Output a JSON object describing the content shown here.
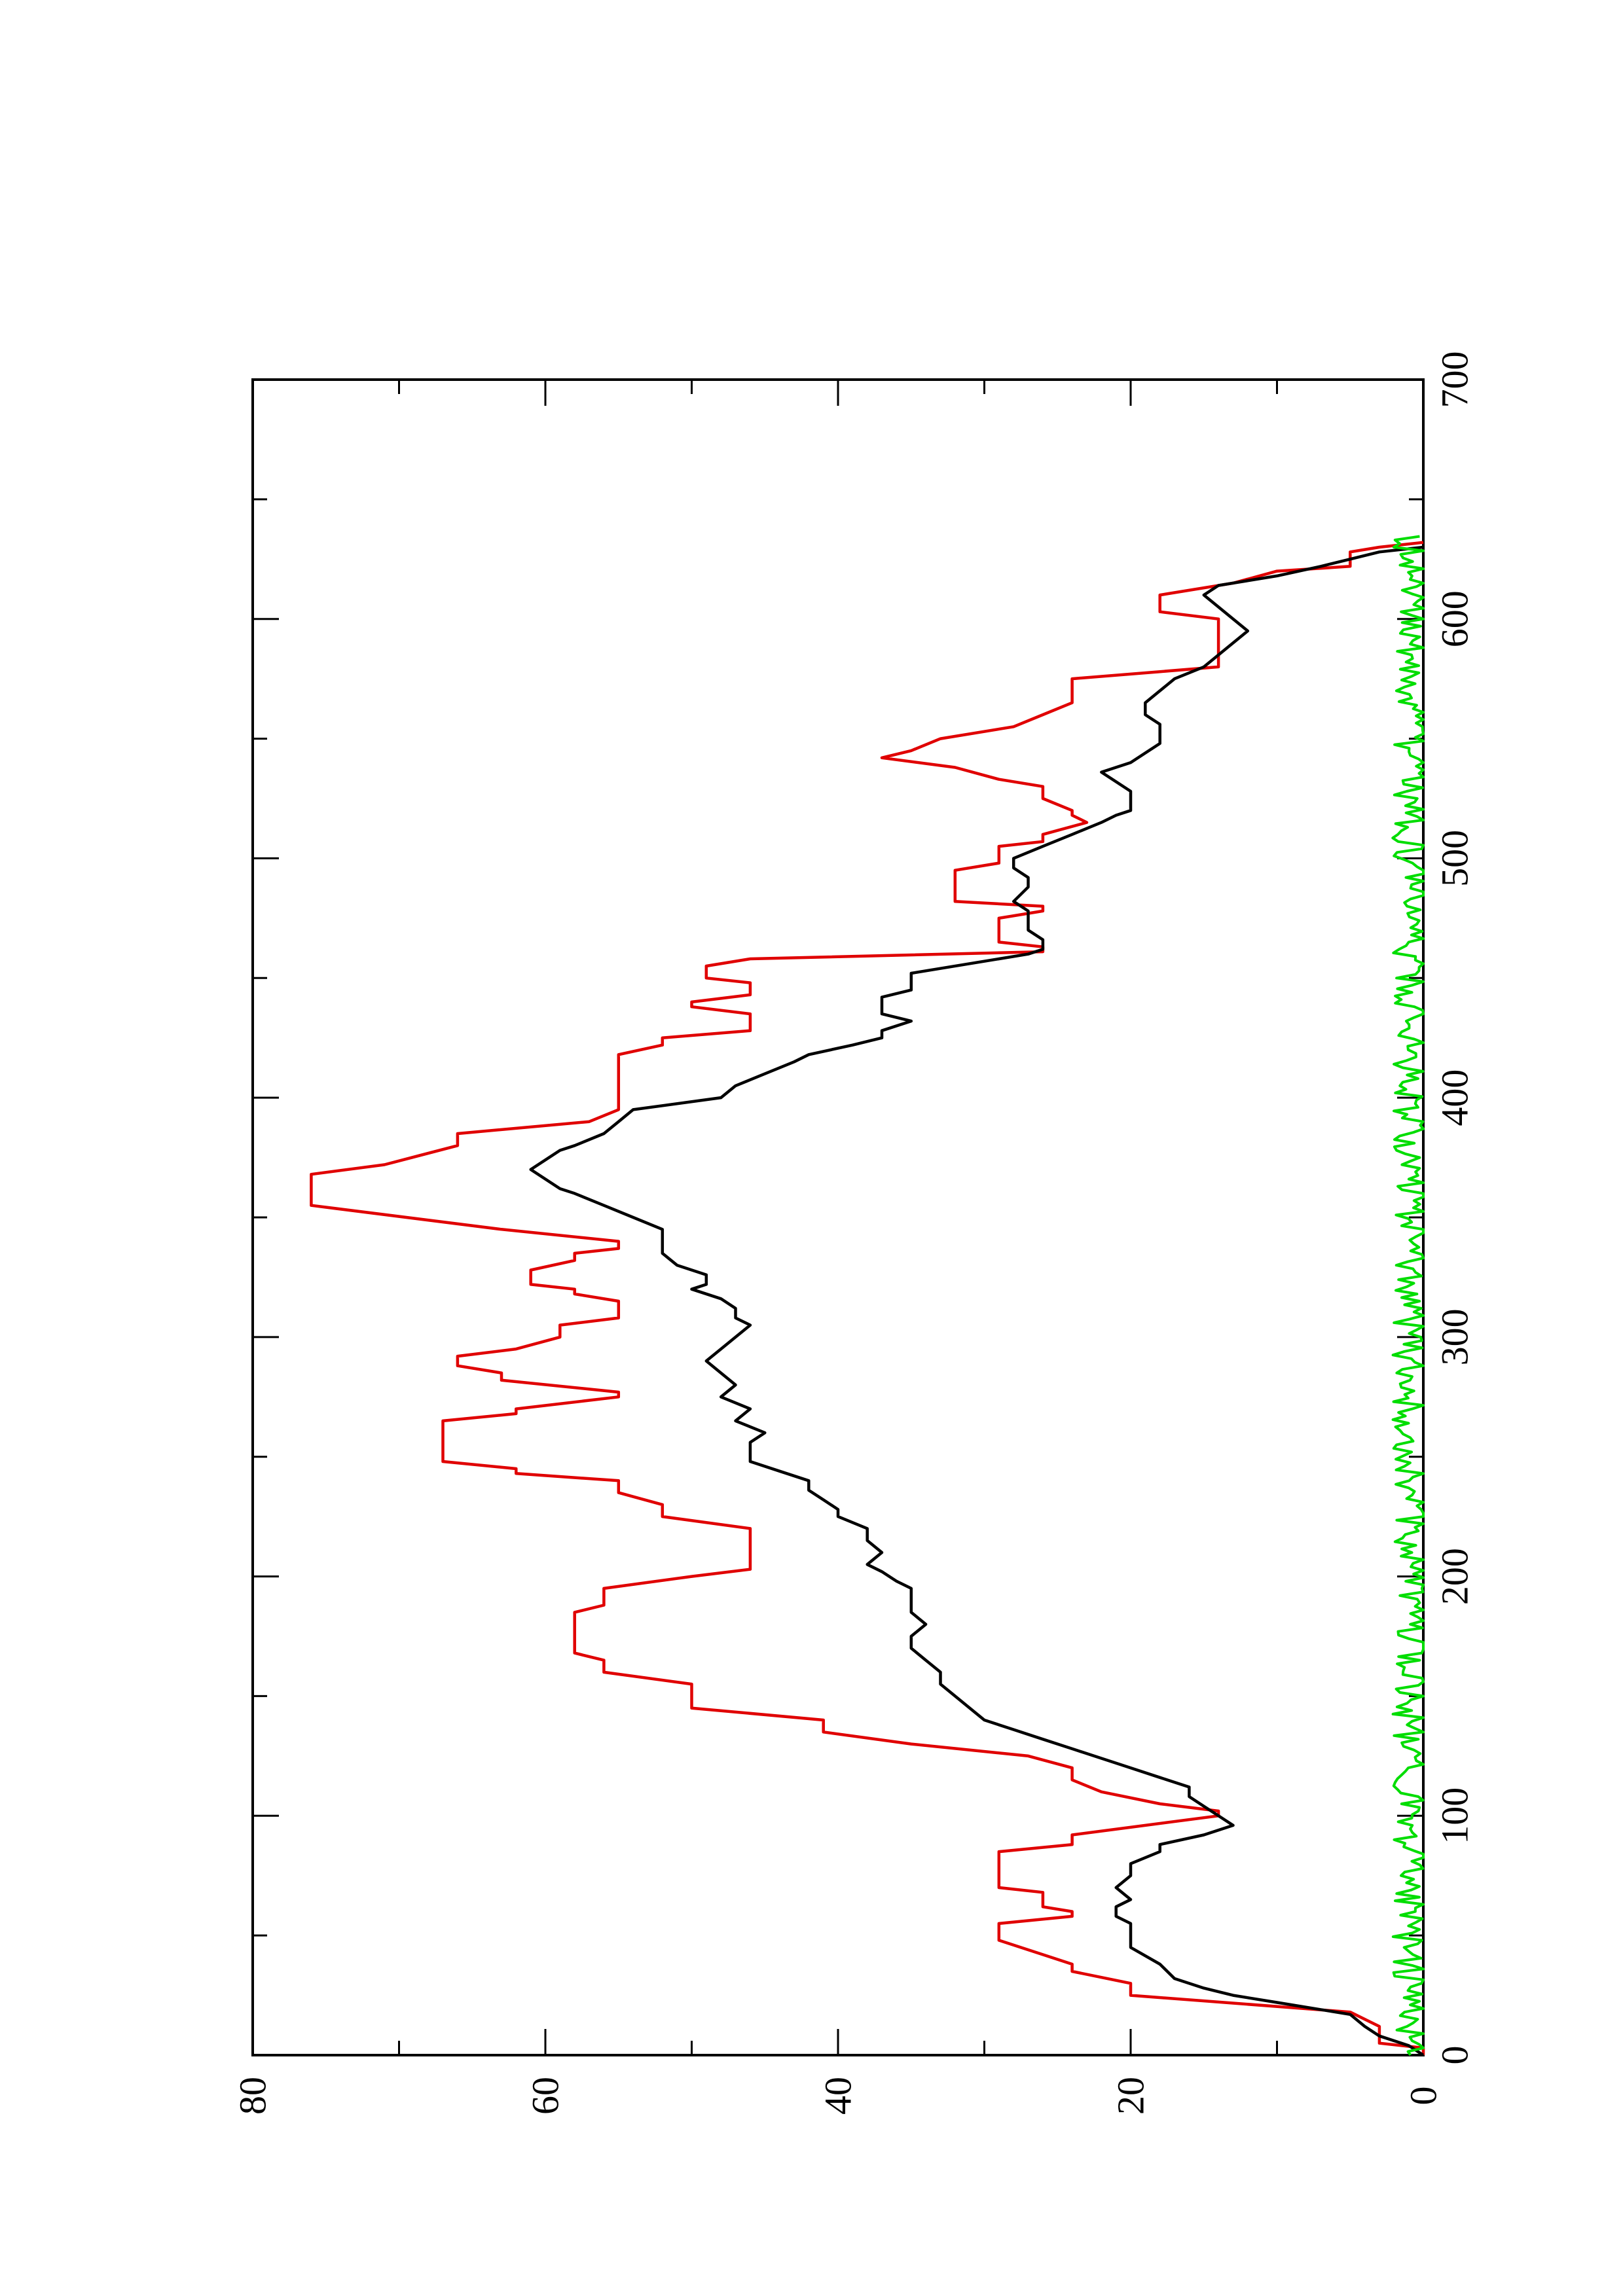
{
  "chart_data": {
    "type": "line",
    "orientation": "rotated 90 degrees counter-clockwise (page in portrait)",
    "title": "",
    "xlabel": "",
    "ylabel": "",
    "xlim": [
      0,
      700
    ],
    "ylim": [
      0,
      80
    ],
    "x_ticks": [
      0,
      100,
      200,
      300,
      400,
      500,
      600,
      700
    ],
    "y_ticks": [
      0,
      20,
      40,
      60,
      80
    ],
    "x_tick_labels": [
      "0",
      "100",
      "200",
      "300",
      "400",
      "500",
      "600",
      "700"
    ],
    "y_tick_labels": [
      "0",
      "20",
      "40",
      "60",
      "80"
    ],
    "grid": false,
    "legend": "none",
    "series": [
      {
        "color": "#e00000",
        "style": "step",
        "points": [
          [
            0,
            0
          ],
          [
            3,
            0
          ],
          [
            5,
            3
          ],
          [
            12,
            3
          ],
          [
            18,
            5
          ],
          [
            25,
            20
          ],
          [
            30,
            20
          ],
          [
            35,
            24
          ],
          [
            38,
            24
          ],
          [
            42,
            26
          ],
          [
            48,
            29
          ],
          [
            55,
            29
          ],
          [
            58,
            24
          ],
          [
            60,
            24
          ],
          [
            62,
            26
          ],
          [
            68,
            26
          ],
          [
            70,
            29
          ],
          [
            85,
            29
          ],
          [
            88,
            24
          ],
          [
            92,
            24
          ],
          [
            100,
            14
          ],
          [
            102,
            14
          ],
          [
            105,
            18
          ],
          [
            110,
            22
          ],
          [
            115,
            24
          ],
          [
            120,
            24
          ],
          [
            125,
            27
          ],
          [
            130,
            35
          ],
          [
            135,
            41
          ],
          [
            140,
            41
          ],
          [
            145,
            50
          ],
          [
            155,
            50
          ],
          [
            160,
            56
          ],
          [
            165,
            56
          ],
          [
            168,
            58
          ],
          [
            185,
            58
          ],
          [
            188,
            56
          ],
          [
            195,
            56
          ],
          [
            200,
            50
          ],
          [
            203,
            46
          ],
          [
            220,
            46
          ],
          [
            225,
            52
          ],
          [
            230,
            52
          ],
          [
            235,
            55
          ],
          [
            240,
            55
          ],
          [
            243,
            62
          ],
          [
            245,
            62
          ],
          [
            248,
            67
          ],
          [
            265,
            67
          ],
          [
            268,
            62
          ],
          [
            270,
            62
          ],
          [
            275,
            55
          ],
          [
            277,
            55
          ],
          [
            282,
            63
          ],
          [
            285,
            63
          ],
          [
            288,
            66
          ],
          [
            292,
            66
          ],
          [
            295,
            62
          ],
          [
            300,
            59
          ],
          [
            305,
            59
          ],
          [
            308,
            55
          ],
          [
            315,
            55
          ],
          [
            318,
            58
          ],
          [
            320,
            58
          ],
          [
            322,
            61
          ],
          [
            328,
            61
          ],
          [
            332,
            58
          ],
          [
            335,
            58
          ],
          [
            337,
            55
          ],
          [
            340,
            55
          ],
          [
            345,
            63
          ],
          [
            355,
            76
          ],
          [
            368,
            76
          ],
          [
            372,
            71
          ],
          [
            380,
            66
          ],
          [
            385,
            66
          ],
          [
            390,
            57
          ],
          [
            395,
            55
          ],
          [
            418,
            55
          ],
          [
            422,
            52
          ],
          [
            425,
            52
          ],
          [
            428,
            46
          ],
          [
            435,
            46
          ],
          [
            438,
            50
          ],
          [
            440,
            50
          ],
          [
            443,
            46
          ],
          [
            448,
            46
          ],
          [
            450,
            49
          ],
          [
            455,
            49
          ],
          [
            458,
            46
          ],
          [
            461,
            26
          ],
          [
            463,
            26
          ],
          [
            465,
            29
          ],
          [
            475,
            29
          ],
          [
            478,
            26
          ],
          [
            480,
            26
          ],
          [
            482,
            32
          ],
          [
            495,
            32
          ],
          [
            498,
            29
          ],
          [
            505,
            29
          ],
          [
            507,
            26
          ],
          [
            510,
            26
          ],
          [
            515,
            23
          ],
          [
            518,
            24
          ],
          [
            520,
            24
          ],
          [
            525,
            26
          ],
          [
            530,
            26
          ],
          [
            533,
            29
          ],
          [
            538,
            32
          ],
          [
            542,
            37
          ],
          [
            545,
            35
          ],
          [
            550,
            33
          ],
          [
            555,
            28
          ],
          [
            560,
            26
          ],
          [
            565,
            24
          ],
          [
            575,
            24
          ],
          [
            578,
            18
          ],
          [
            580,
            14
          ],
          [
            600,
            14
          ],
          [
            603,
            18
          ],
          [
            610,
            18
          ],
          [
            615,
            13
          ],
          [
            620,
            10
          ],
          [
            622,
            5
          ],
          [
            628,
            5
          ],
          [
            630,
            3
          ],
          [
            632,
            0
          ]
        ]
      },
      {
        "color": "#000000",
        "style": "line",
        "points": [
          [
            0,
            0
          ],
          [
            4,
            1
          ],
          [
            8,
            3
          ],
          [
            12,
            4
          ],
          [
            17,
            5
          ],
          [
            22,
            10
          ],
          [
            25,
            13
          ],
          [
            28,
            15
          ],
          [
            32,
            17
          ],
          [
            38,
            18
          ],
          [
            45,
            20
          ],
          [
            50,
            20
          ],
          [
            55,
            20
          ],
          [
            58,
            21
          ],
          [
            62,
            21
          ],
          [
            65,
            20
          ],
          [
            70,
            21
          ],
          [
            75,
            20
          ],
          [
            80,
            20
          ],
          [
            85,
            18
          ],
          [
            88,
            18
          ],
          [
            92,
            15
          ],
          [
            96,
            13
          ],
          [
            100,
            14
          ],
          [
            104,
            15
          ],
          [
            108,
            16
          ],
          [
            112,
            16
          ],
          [
            116,
            18
          ],
          [
            120,
            20
          ],
          [
            124,
            22
          ],
          [
            128,
            24
          ],
          [
            132,
            26
          ],
          [
            136,
            28
          ],
          [
            140,
            30
          ],
          [
            145,
            31
          ],
          [
            150,
            32
          ],
          [
            155,
            33
          ],
          [
            160,
            33
          ],
          [
            165,
            34
          ],
          [
            170,
            35
          ],
          [
            175,
            35
          ],
          [
            180,
            34
          ],
          [
            185,
            35
          ],
          [
            190,
            35
          ],
          [
            195,
            35
          ],
          [
            198,
            36
          ],
          [
            202,
            37
          ],
          [
            205,
            38
          ],
          [
            210,
            37
          ],
          [
            215,
            38
          ],
          [
            220,
            38
          ],
          [
            225,
            40
          ],
          [
            228,
            40
          ],
          [
            232,
            41
          ],
          [
            236,
            42
          ],
          [
            240,
            42
          ],
          [
            244,
            44
          ],
          [
            248,
            46
          ],
          [
            252,
            46
          ],
          [
            256,
            46
          ],
          [
            260,
            45
          ],
          [
            265,
            47
          ],
          [
            270,
            46
          ],
          [
            275,
            48
          ],
          [
            280,
            47
          ],
          [
            285,
            48
          ],
          [
            290,
            49
          ],
          [
            295,
            48
          ],
          [
            300,
            47
          ],
          [
            305,
            46
          ],
          [
            308,
            47
          ],
          [
            312,
            47
          ],
          [
            316,
            48
          ],
          [
            320,
            50
          ],
          [
            322,
            49
          ],
          [
            326,
            49
          ],
          [
            330,
            51
          ],
          [
            335,
            52
          ],
          [
            340,
            52
          ],
          [
            345,
            52
          ],
          [
            350,
            54
          ],
          [
            355,
            56
          ],
          [
            360,
            58
          ],
          [
            362,
            59
          ],
          [
            366,
            60
          ],
          [
            370,
            61
          ],
          [
            374,
            60
          ],
          [
            378,
            59
          ],
          [
            380,
            58
          ],
          [
            385,
            56
          ],
          [
            390,
            55
          ],
          [
            395,
            54
          ],
          [
            400,
            48
          ],
          [
            405,
            47
          ],
          [
            410,
            45
          ],
          [
            415,
            43
          ],
          [
            418,
            42
          ],
          [
            422,
            39
          ],
          [
            425,
            37
          ],
          [
            428,
            37
          ],
          [
            432,
            35
          ],
          [
            435,
            37
          ],
          [
            438,
            37
          ],
          [
            442,
            37
          ],
          [
            445,
            35
          ],
          [
            448,
            35
          ],
          [
            452,
            35
          ],
          [
            456,
            31
          ],
          [
            460,
            27
          ],
          [
            462,
            26
          ],
          [
            466,
            26
          ],
          [
            470,
            27
          ],
          [
            474,
            27
          ],
          [
            478,
            27
          ],
          [
            482,
            28
          ],
          [
            488,
            27
          ],
          [
            492,
            27
          ],
          [
            496,
            28
          ],
          [
            500,
            28
          ],
          [
            505,
            26
          ],
          [
            510,
            24
          ],
          [
            515,
            22
          ],
          [
            518,
            21
          ],
          [
            520,
            20
          ],
          [
            524,
            20
          ],
          [
            528,
            20
          ],
          [
            532,
            21
          ],
          [
            536,
            22
          ],
          [
            540,
            20
          ],
          [
            544,
            19
          ],
          [
            548,
            18
          ],
          [
            552,
            18
          ],
          [
            556,
            18
          ],
          [
            560,
            19
          ],
          [
            565,
            19
          ],
          [
            570,
            18
          ],
          [
            575,
            17
          ],
          [
            580,
            15
          ],
          [
            585,
            14
          ],
          [
            590,
            13
          ],
          [
            595,
            12
          ],
          [
            600,
            13
          ],
          [
            605,
            14
          ],
          [
            610,
            15
          ],
          [
            614,
            14
          ],
          [
            618,
            10
          ],
          [
            622,
            7
          ],
          [
            625,
            5
          ],
          [
            628,
            3
          ],
          [
            630,
            0
          ]
        ]
      },
      {
        "color": "#00dd00",
        "style": "noisy-line",
        "mean": 0.9,
        "amplitude": 1.2,
        "x_range": [
          0,
          635
        ]
      }
    ]
  }
}
